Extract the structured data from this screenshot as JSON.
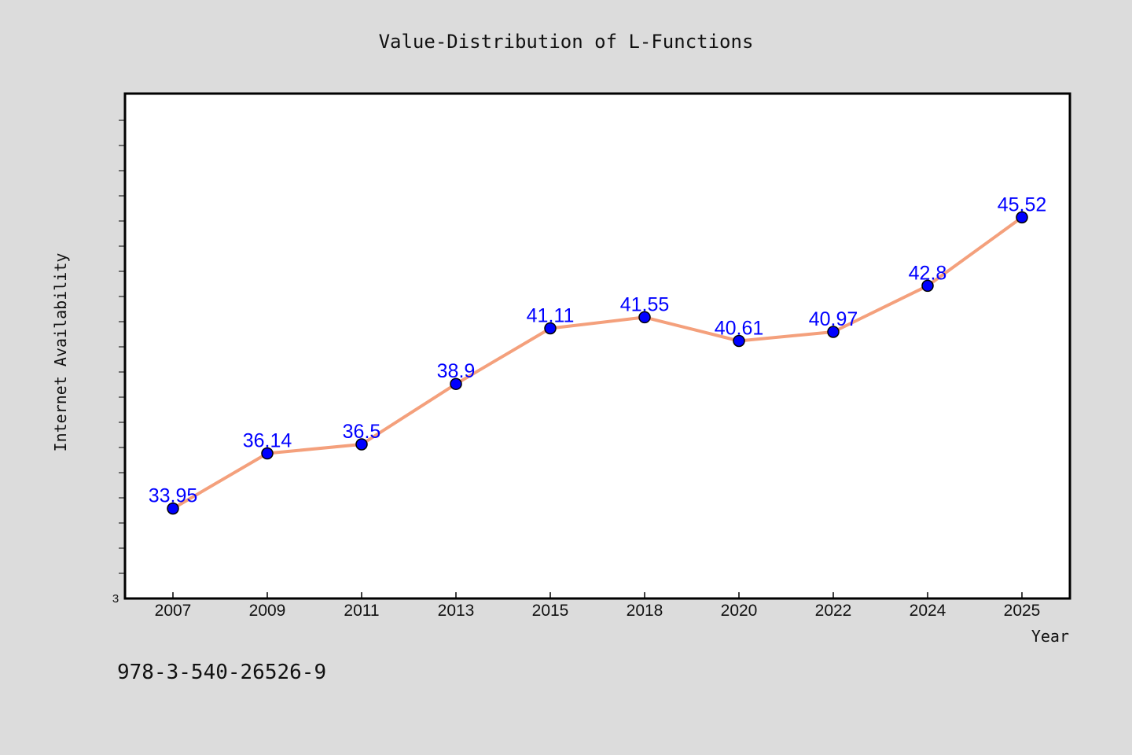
{
  "chart_data": {
    "type": "line",
    "title": "Value-Distribution of L-Functions",
    "xlabel": "Year",
    "ylabel": "Internet Availability",
    "categories": [
      "2007",
      "2009",
      "2011",
      "2013",
      "2015",
      "2018",
      "2020",
      "2022",
      "2024",
      "2025"
    ],
    "series": [
      {
        "values": [
          33.95,
          36.14,
          36.5,
          38.9,
          41.11,
          41.55,
          40.61,
          40.97,
          42.8,
          45.52
        ],
        "data_labels": [
          "33.95",
          "36.14",
          "36.5",
          "38.9",
          "41.11",
          "41.55",
          "40.61",
          "40.97",
          "42.8",
          "45.52"
        ]
      }
    ],
    "y_tick_labels": [
      "3"
    ],
    "ylim": [
      30,
      50
    ],
    "grid": false,
    "colors": {
      "line": "#f4a07c",
      "marker": "#0000ff",
      "data_label": "#0000ff",
      "background": "#dcdcdc",
      "plot_bg": "#ffffff"
    }
  },
  "footer_text": "978-3-540-26526-9"
}
